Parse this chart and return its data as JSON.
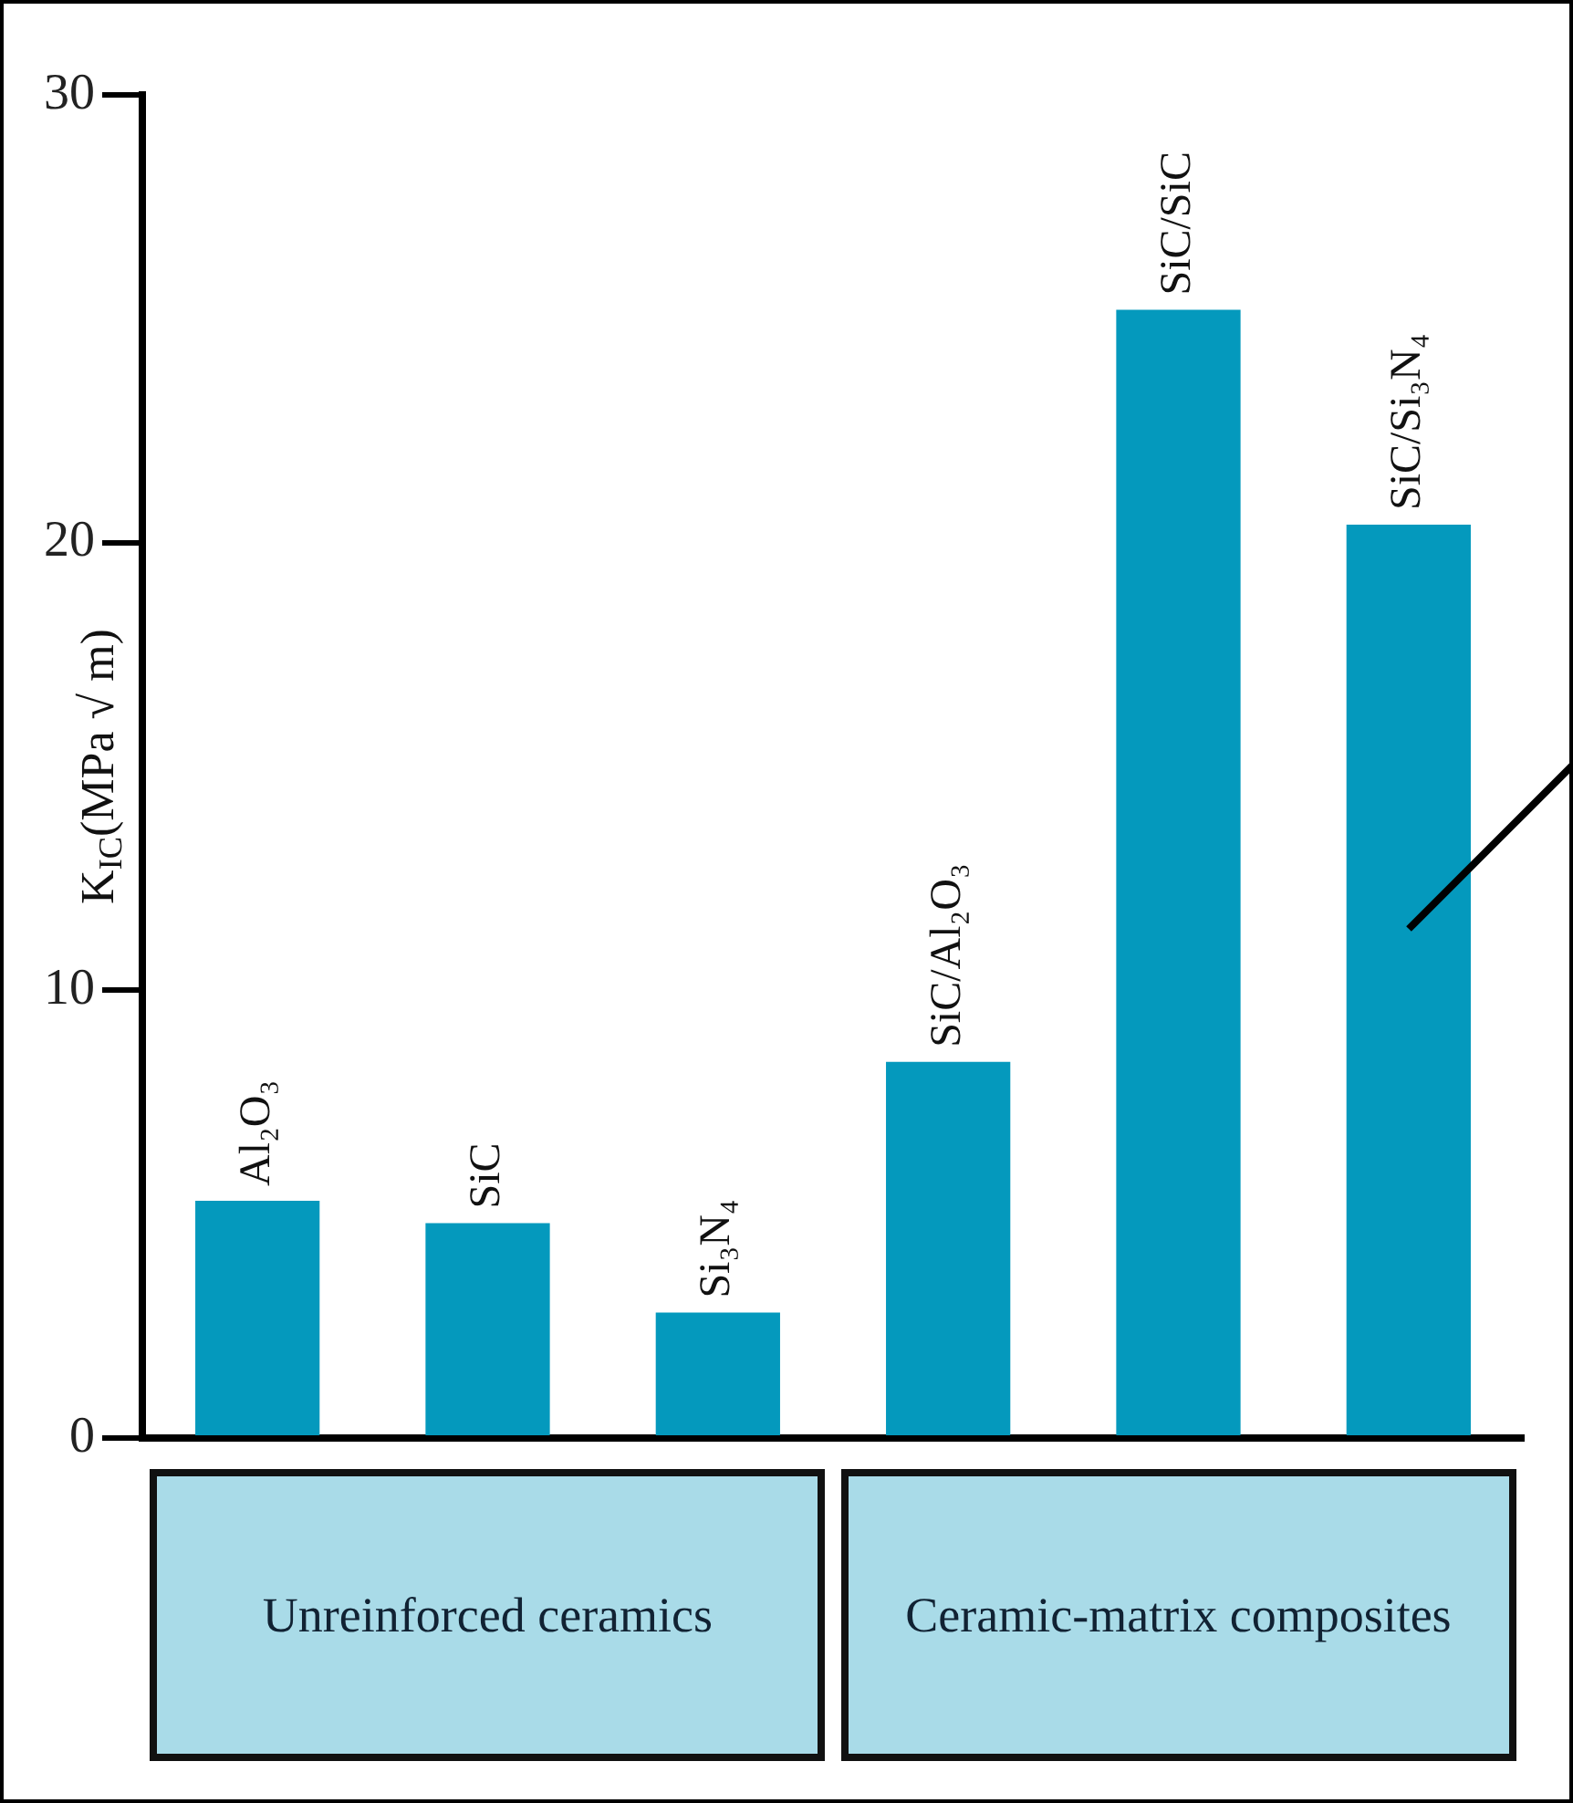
{
  "chart_data": {
    "type": "bar",
    "ylabel": "K$_{IC}$(MPa √ m)",
    "categories": [
      "Al₂O₃",
      "SiC",
      "Si₃N₄",
      "SiC/Al₂O₃",
      "SiC/SiC",
      "SiC/Si₃N₄"
    ],
    "values": [
      5.3,
      4.8,
      2.8,
      8.4,
      25.2,
      20.4
    ],
    "color": "#0499bd",
    "ylim": [
      0,
      30
    ],
    "yticks": [
      0,
      10,
      20,
      30
    ],
    "grid": false,
    "legend": false,
    "annotations": [
      "Unreinforced ceramics",
      "Ceramic-matrix composites"
    ]
  }
}
